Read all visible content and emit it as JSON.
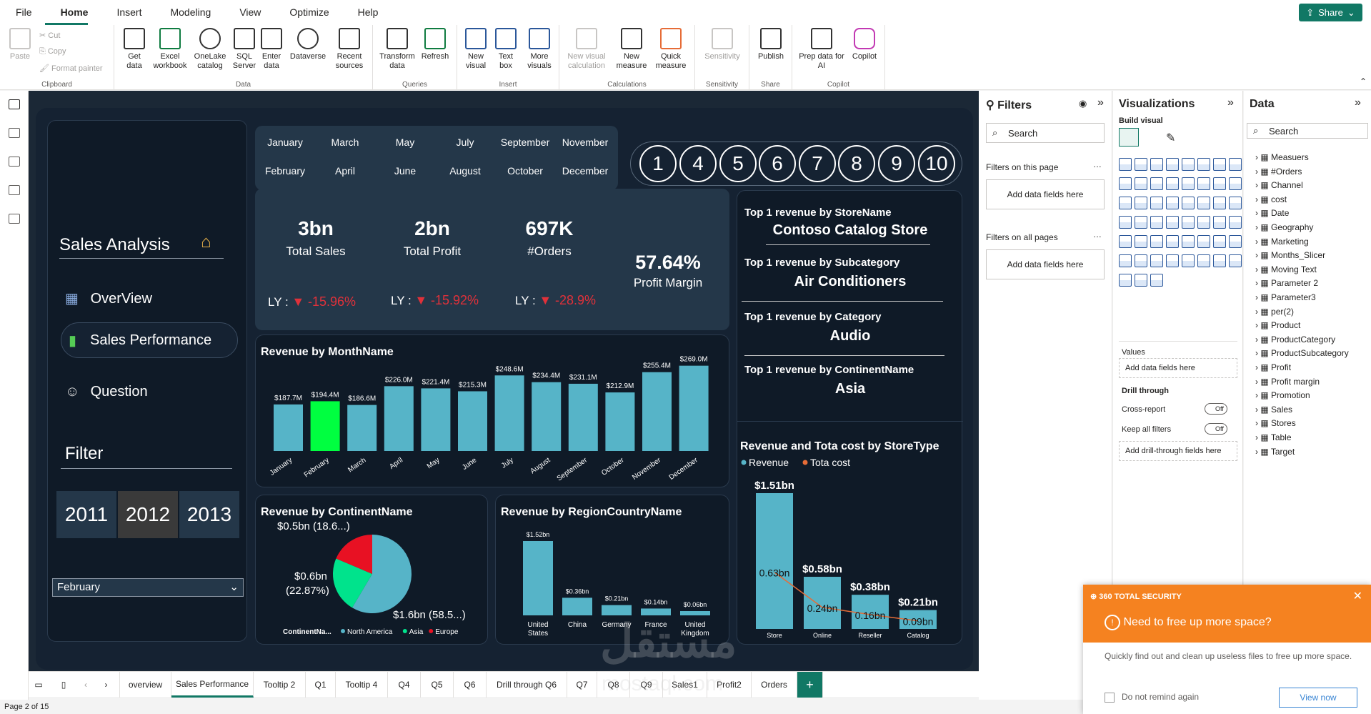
{
  "menu": {
    "items": [
      "File",
      "Home",
      "Insert",
      "Modeling",
      "View",
      "Optimize",
      "Help"
    ],
    "share": "Share"
  },
  "ribbon": {
    "clipboard": {
      "paste": "Paste",
      "cut": "Cut",
      "copy": "Copy",
      "format_painter": "Format painter",
      "label": "Clipboard"
    },
    "data": {
      "get_data": "Get data",
      "excel": "Excel workbook",
      "onelake": "OneLake catalog",
      "sql": "SQL Server",
      "enter": "Enter data",
      "dataverse": "Dataverse",
      "recent": "Recent sources",
      "label": "Data"
    },
    "queries": {
      "transform": "Transform data",
      "refresh": "Refresh",
      "label": "Queries"
    },
    "insert": {
      "new_visual": "New visual",
      "text_box": "Text box",
      "more_visuals": "More visuals",
      "label": "Insert"
    },
    "calculations": {
      "new_visual_calc": "New visual calculation",
      "new_measure": "New measure",
      "quick_measure": "Quick measure",
      "label": "Calculations"
    },
    "sensitivity": {
      "btn": "Sensitivity",
      "label": "Sensitivity"
    },
    "share": {
      "publish": "Publish",
      "label": "Share"
    },
    "copilot": {
      "prep": "Prep data for AI",
      "copilot": "Copilot",
      "label": "Copilot"
    }
  },
  "report": {
    "nav": {
      "title": "Sales Analysis",
      "overview": "OverView",
      "sales_performance": "Sales Performance",
      "question": "Question",
      "filter": "Filter",
      "years": [
        "2011",
        "2012",
        "2013"
      ],
      "dropdown": "February"
    },
    "months": [
      "January",
      "March",
      "May",
      "July",
      "September",
      "November",
      "February",
      "April",
      "June",
      "August",
      "October",
      "December"
    ],
    "numbers": [
      "1",
      "4",
      "5",
      "6",
      "7",
      "8",
      "9",
      "10"
    ],
    "kpi": {
      "total_sales": "3bn",
      "total_sales_label": "Total Sales",
      "total_profit": "2bn",
      "total_profit_label": "Total Profit",
      "orders": "697K",
      "orders_label": "#Orders",
      "profit_margin": "57.64%",
      "profit_margin_label": "Profit Margin",
      "ly_label": "LY :",
      "ly_sales": "-15.96%",
      "ly_profit": "-15.92%",
      "ly_orders": "-28.9%"
    },
    "top": {
      "store_label": "Top 1 revenue by StoreName",
      "store": "Contoso Catalog Store",
      "subcat_label": "Top 1 revenue by Subcategory",
      "subcat": "Air Conditioners",
      "cat_label": "Top 1 revenue by Category",
      "cat": "Audio",
      "continent_label": "Top 1 revenue by ContinentName",
      "continent": "Asia"
    }
  },
  "chart_data": [
    {
      "type": "bar",
      "title": "Revenue by MonthName",
      "categories": [
        "January",
        "February",
        "March",
        "April",
        "May",
        "June",
        "July",
        "August",
        "September",
        "October",
        "November",
        "December"
      ],
      "values": [
        187.7,
        194.4,
        186.6,
        226.0,
        221.4,
        215.3,
        248.6,
        234.4,
        231.1,
        212.9,
        255.4,
        269.0
      ],
      "labels": [
        "$187.7M",
        "$194.4M",
        "$186.6M",
        "$226.0M",
        "$221.4M",
        "$215.3M",
        "$248.6M",
        "$234.4M",
        "$231.1M",
        "$212.9M",
        "$255.4M",
        "$269.0M"
      ],
      "highlight": "February"
    },
    {
      "type": "pie",
      "title": "Revenue by ContinentName",
      "legend_title": "ContinentNa...",
      "slices": [
        {
          "name": "North America",
          "value": 58.5,
          "label": "$1.6bn (58.5...)",
          "color": "#56b4c8"
        },
        {
          "name": "Asia",
          "value": 22.87,
          "label": "$0.6bn (22.87%)",
          "color": "#00e38c"
        },
        {
          "name": "Europe",
          "value": 18.6,
          "label": "$0.5bn (18.6...)",
          "color": "#e81123"
        }
      ]
    },
    {
      "type": "bar",
      "title": "Revenue by RegionCountryName",
      "categories": [
        "United States",
        "China",
        "Germany",
        "France",
        "United Kingdom"
      ],
      "values": [
        1.52,
        0.36,
        0.21,
        0.14,
        0.06
      ],
      "labels": [
        "$1.52bn",
        "$0.36bn",
        "$0.21bn",
        "$0.14bn",
        "$0.06bn"
      ]
    },
    {
      "type": "bar",
      "title": "Revenue and Tota cost by StoreType",
      "categories": [
        "Store",
        "Online",
        "Reseller",
        "Catalog"
      ],
      "series": [
        {
          "name": "Revenue",
          "values": [
            1.51,
            0.58,
            0.38,
            0.21
          ],
          "labels": [
            "$1.51bn",
            "$0.58bn",
            "$0.38bn",
            "$0.21bn"
          ],
          "color": "#56b4c8"
        },
        {
          "name": "Tota cost",
          "values": [
            0.63,
            0.24,
            0.16,
            0.09
          ],
          "labels": [
            "0.63bn",
            "0.24bn",
            "0.16bn",
            "0.09bn"
          ],
          "color": "#e66c37"
        }
      ]
    }
  ],
  "filters": {
    "title": "Filters",
    "search": "Search",
    "on_page": "Filters on this page",
    "add": "Add data fields here",
    "all_pages": "Filters on all pages"
  },
  "viz": {
    "title": "Visualizations",
    "build": "Build visual",
    "values": "Values",
    "add": "Add data fields here",
    "drill": "Drill through",
    "cross": "Cross-report",
    "keep": "Keep all filters",
    "off": "Off",
    "add_drill": "Add drill-through fields here"
  },
  "data": {
    "title": "Data",
    "search": "Search",
    "items": [
      "Measuers",
      "#Orders",
      "Channel",
      "cost",
      "Date",
      "Geography",
      "Marketing",
      "Months_Slicer",
      "Moving Text",
      "Parameter 2",
      "Parameter3",
      "per(2)",
      "Product",
      "ProductCategory",
      "ProductSubcategory",
      "Profit",
      "Profit margin",
      "Promotion",
      "Sales",
      "Stores",
      "Table",
      "Target"
    ]
  },
  "tabs": [
    "overview",
    "Sales Performance",
    "Tooltip 2",
    "Q1",
    "Tooltip 4",
    "Q4",
    "Q5",
    "Q6",
    "Drill through Q6",
    "Q7",
    "Q8",
    "Q9",
    "Sales1",
    "Profit2",
    "Orders"
  ],
  "status": "Page 2 of 15",
  "popup": {
    "brand": "360 TOTAL SECURITY",
    "title": "Need to free up more space?",
    "body": "Quickly find out and clean up useless files to free up more space.",
    "remind": "Do not remind again",
    "view": "View now"
  }
}
